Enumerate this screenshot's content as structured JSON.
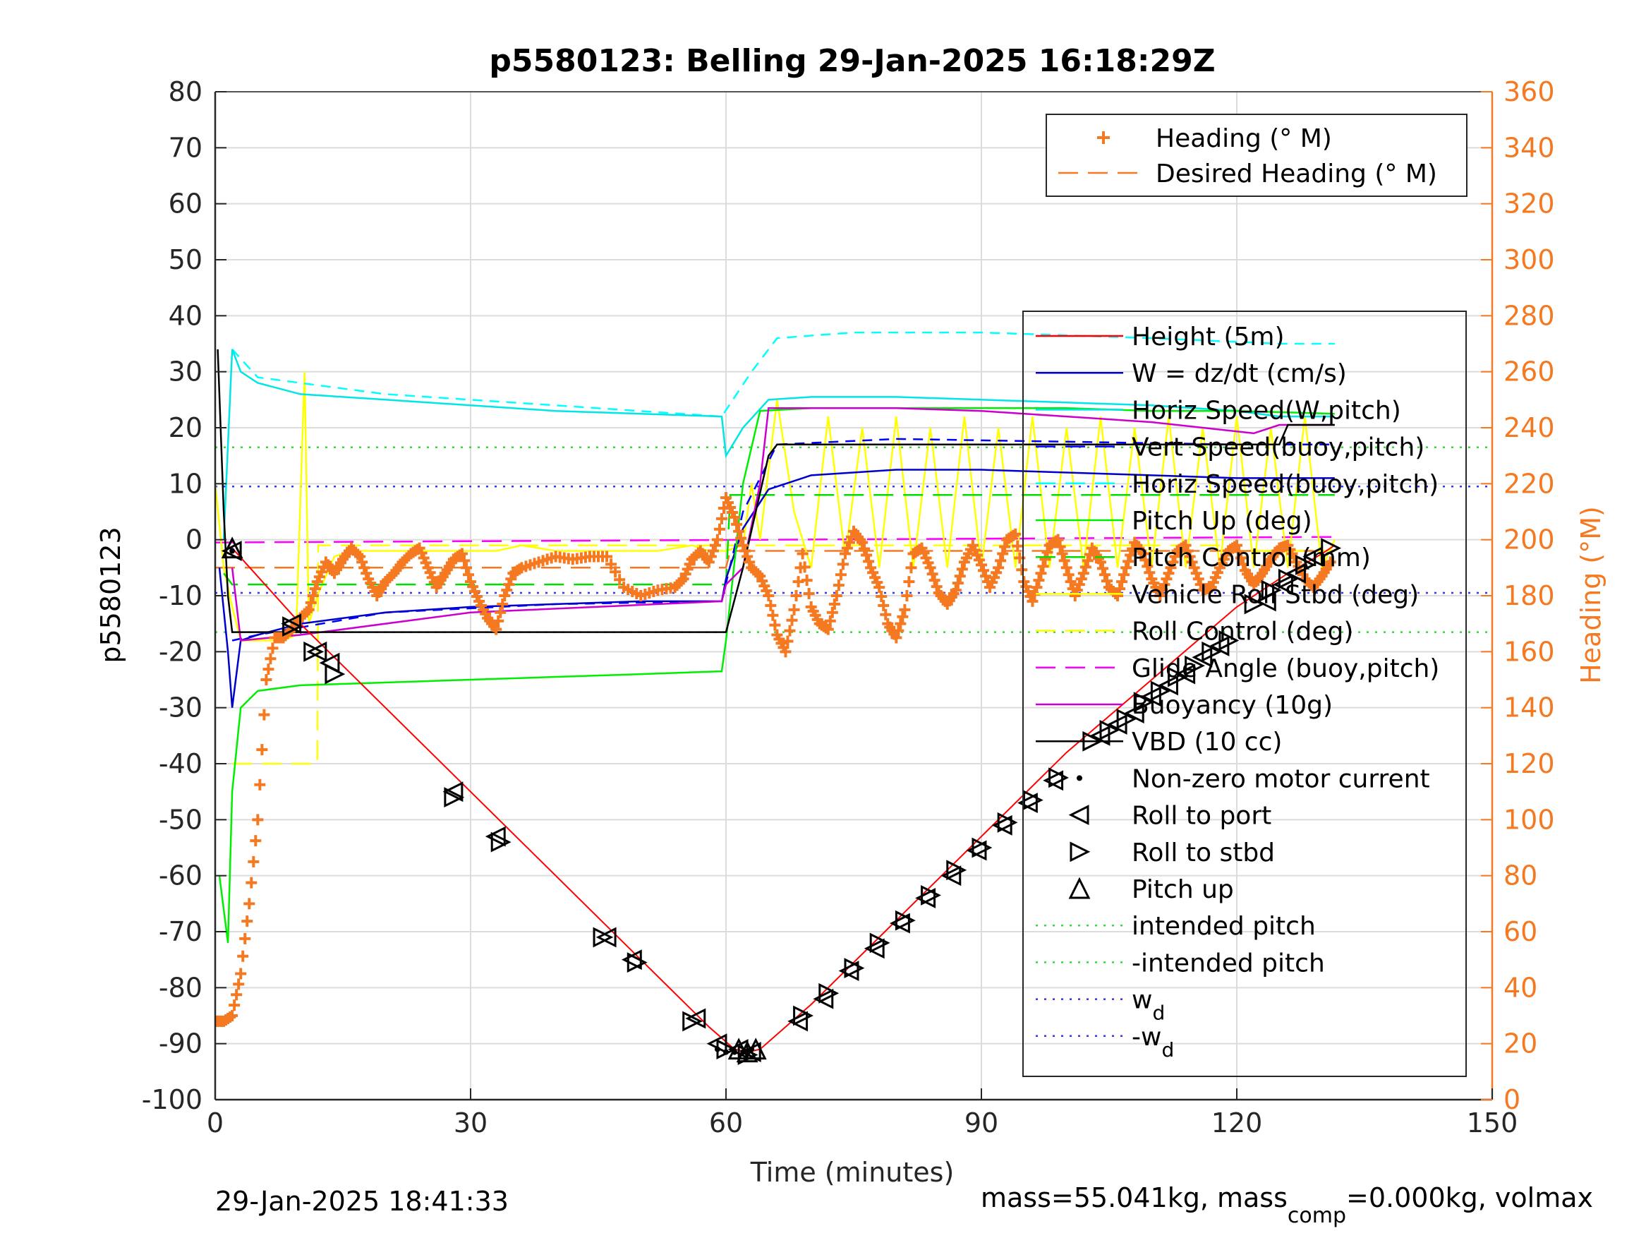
{
  "chart_data": {
    "type": "line",
    "title": "p5580123: Belling 29-Jan-2025 16:18:29Z",
    "xlabel": "Time (minutes)",
    "ylabel_left": "p5580123",
    "ylabel_right": "Heading (°M)",
    "xlim": [
      0,
      150
    ],
    "ylim_left": [
      -100,
      80
    ],
    "ylim_right": [
      0,
      360
    ],
    "xticks": [
      0,
      30,
      60,
      90,
      120,
      150
    ],
    "yticks_left": [
      80,
      70,
      60,
      50,
      40,
      30,
      20,
      10,
      0,
      -10,
      -20,
      -30,
      -40,
      -50,
      -60,
      -70,
      -80,
      -90,
      -100
    ],
    "yticks_right": [
      360,
      340,
      320,
      300,
      280,
      260,
      240,
      220,
      200,
      180,
      160,
      140,
      120,
      100,
      80,
      60,
      40,
      20,
      0
    ],
    "grid": true,
    "footer_left": "29-Jan-2025 18:41:33",
    "footer_right": {
      "mass": "mass=55.041kg, mass",
      "mass_sub": "comp",
      "mass_rest": "=0.000kg, volmax"
    },
    "colors": {
      "height": "#ff0000",
      "w": "#0000cc",
      "horiz_speed_w": "#00e5e5",
      "vert_speed_buoy": "#0000ff",
      "horiz_speed_buoy": "#00ffff",
      "pitch_up": "#00ee00",
      "pitch_control": "#00dd00",
      "roll": "#ffff00",
      "roll_control": "#ffff00",
      "glide_angle": "#ff00ff",
      "buoyancy": "#cc00cc",
      "vbd": "#000000",
      "heading": "#f47920",
      "intended_pitch": "#33dd33",
      "wd": "#3333ff"
    },
    "legend_heading": {
      "location": "top-right",
      "entries": [
        {
          "label": "Heading (° M)",
          "style": "plus"
        },
        {
          "label": "Desired Heading (° M)",
          "style": "dash"
        }
      ]
    },
    "legend_main": {
      "location": "right",
      "entries": [
        {
          "label": "Height (5m)",
          "style": "line",
          "color": "#ff0000"
        },
        {
          "label": "W = dz/dt (cm/s)",
          "style": "line",
          "color": "#0000cc"
        },
        {
          "label": "Horiz Speed(W,pitch)",
          "style": "line",
          "color": "#00e5e5"
        },
        {
          "label": "Vert Speed(buoy,pitch)",
          "style": "dash",
          "color": "#0000ff"
        },
        {
          "label": "Horiz Speed(buoy,pitch)",
          "style": "dash",
          "color": "#00ffff"
        },
        {
          "label": "Pitch Up (deg)",
          "style": "line",
          "color": "#00ee00"
        },
        {
          "label": "Pitch Control (mm)",
          "style": "dash",
          "color": "#00dd00"
        },
        {
          "label": "Vehicle Roll Stbd (deg)",
          "style": "line",
          "color": "#ffff00"
        },
        {
          "label": "Roll Control (deg)",
          "style": "dash",
          "color": "#ffff00"
        },
        {
          "label": "Glide Angle (buoy,pitch)",
          "style": "dash",
          "color": "#ff00ff"
        },
        {
          "label": "Buoyancy (10g)",
          "style": "line",
          "color": "#cc00cc"
        },
        {
          "label": "VBD (10 cc)",
          "style": "line",
          "color": "#000000"
        },
        {
          "label": "Non-zero motor current",
          "style": "dot",
          "color": "#000000"
        },
        {
          "label": "Roll to port",
          "style": "tri-left",
          "color": "#000000"
        },
        {
          "label": "Roll to stbd",
          "style": "tri-right",
          "color": "#000000"
        },
        {
          "label": "Pitch up",
          "style": "tri-up",
          "color": "#000000"
        },
        {
          "label": "intended pitch",
          "style": "dot-line",
          "color": "#33dd33"
        },
        {
          "label": "-intended pitch",
          "style": "dot-line",
          "color": "#33dd33"
        },
        {
          "label": "w",
          "sub": "d",
          "style": "dot-line",
          "color": "#3333ff"
        },
        {
          "label": "-w",
          "sub": "d",
          "style": "dot-line",
          "color": "#3333ff"
        }
      ]
    },
    "series": [
      {
        "name": "Height (5m)",
        "axis": "left",
        "x": [
          2,
          10,
          20,
          30,
          40,
          50,
          58,
          61,
          62.5,
          64,
          70,
          80,
          90,
          100,
          110,
          120,
          126,
          130,
          131.5
        ],
        "y": [
          -1.5,
          -15,
          -30,
          -45,
          -60,
          -75,
          -87,
          -91,
          -91.5,
          -91,
          -83,
          -68,
          -53,
          -38,
          -25,
          -12,
          -6,
          -2.5,
          -1
        ]
      },
      {
        "name": "W = dz/dt (cm/s)",
        "axis": "left",
        "x": [
          0.5,
          1.5,
          2,
          3,
          5,
          10,
          20,
          30,
          40,
          50,
          59.5,
          60,
          62,
          65,
          70,
          80,
          90,
          100,
          110,
          120,
          125,
          131.5
        ],
        "y": [
          -5,
          -20,
          -30,
          -18,
          -17,
          -15,
          -13,
          -12,
          -11.5,
          -11,
          -11,
          -7,
          2,
          9,
          11.5,
          12.5,
          12.5,
          12,
          11.5,
          11,
          11,
          11
        ]
      },
      {
        "name": "Horiz Speed(W,pitch)",
        "axis": "left",
        "x": [
          1,
          2,
          3,
          5,
          10,
          20,
          30,
          40,
          50,
          59.5,
          60,
          62,
          65,
          70,
          80,
          90,
          100,
          110,
          120,
          125,
          131.5
        ],
        "y": [
          0,
          34,
          30,
          28,
          26,
          25,
          24,
          23,
          22.5,
          22,
          15,
          20,
          25,
          25.5,
          25.5,
          25,
          24.5,
          24,
          23,
          22,
          22
        ]
      },
      {
        "name": "Vert Speed(buoy,pitch)",
        "axis": "left",
        "x": [
          2,
          5,
          20,
          40,
          59.5,
          62,
          66,
          80,
          100,
          120,
          131.5
        ],
        "y": [
          -18,
          -17,
          -13,
          -11.5,
          -11,
          5,
          17,
          18,
          17.5,
          17,
          17
        ]
      },
      {
        "name": "Horiz Speed(buoy,pitch)",
        "axis": "left",
        "x": [
          2,
          5,
          20,
          40,
          59.5,
          63,
          66,
          75,
          90,
          110,
          125,
          131.5
        ],
        "y": [
          34,
          29,
          26,
          24,
          22,
          30,
          36,
          37,
          37,
          36,
          35,
          35
        ]
      },
      {
        "name": "Pitch Up (deg)",
        "axis": "left",
        "x": [
          0.5,
          1.5,
          2,
          3,
          5,
          10,
          20,
          30,
          40,
          50,
          59.5,
          60,
          62,
          64,
          70,
          80,
          90,
          100,
          110,
          120,
          131.5
        ],
        "y": [
          -60,
          -72,
          -45,
          -30,
          -27,
          -26,
          -25.5,
          -25,
          -24.5,
          -24,
          -23.5,
          -18,
          10,
          23,
          23.5,
          23.5,
          23.5,
          23.5,
          23,
          23,
          22.5
        ]
      },
      {
        "name": "Pitch Control (mm)",
        "axis": "left",
        "x": [
          1,
          2,
          5,
          60,
          60.5,
          64,
          131.5
        ],
        "y": [
          -6,
          -8,
          -8,
          -8,
          8,
          8,
          8
        ]
      },
      {
        "name": "Vehicle Roll Stbd (deg)",
        "axis": "left",
        "x": [
          0,
          1,
          2,
          3,
          5,
          8,
          9.5,
          10.5,
          11,
          12,
          14,
          16,
          20,
          24,
          28,
          30,
          33,
          36,
          40,
          44,
          48,
          52,
          56,
          58,
          59.5,
          60,
          62,
          63,
          64,
          66,
          68,
          70,
          72,
          74,
          76,
          78,
          80,
          82,
          84,
          86,
          88,
          90,
          92,
          94,
          96,
          98,
          100,
          102,
          104,
          106,
          108,
          110,
          112,
          114,
          116,
          118,
          120,
          122,
          124,
          126,
          128,
          130,
          131.5
        ],
        "y": [
          10,
          -5,
          -12,
          -18,
          -18,
          -18,
          -17,
          30,
          -15,
          -10,
          -3,
          -2,
          -2,
          -2,
          -2,
          -2,
          -2,
          -1,
          -2,
          -2,
          -2,
          -2,
          -1,
          -2,
          -2,
          -2,
          -1,
          10,
          0,
          25,
          5,
          -5,
          22,
          -3,
          20,
          -5,
          22,
          -5,
          20,
          -5,
          22,
          -5,
          20,
          -5,
          22,
          -5,
          20,
          -5,
          22,
          -5,
          20,
          -5,
          22,
          -5,
          20,
          -5,
          22,
          -5,
          20,
          -5,
          22,
          -5,
          0
        ]
      },
      {
        "name": "Roll Control (deg)",
        "axis": "left",
        "x": [
          2,
          12,
          12.1,
          120,
          120.1,
          131.5
        ],
        "y": [
          -40,
          -40,
          -1,
          -1,
          -2,
          -2
        ]
      },
      {
        "name": "Glide Angle (buoy,pitch)",
        "axis": "left",
        "x": [
          0,
          131.5
        ],
        "y": [
          -0.5,
          0.5
        ]
      },
      {
        "name": "Buoyancy (10g)",
        "axis": "left",
        "x": [
          2,
          3,
          10,
          30,
          59.5,
          60,
          62,
          64,
          65,
          70,
          80,
          90,
          100,
          110,
          122,
          125,
          131.5
        ],
        "y": [
          -5,
          -18,
          -17,
          -13,
          -11,
          -8,
          -5,
          10,
          23.5,
          23.5,
          23.5,
          23,
          22,
          21,
          19,
          20.5,
          20.5
        ]
      },
      {
        "name": "VBD (10 cc)",
        "axis": "left",
        "x": [
          0.3,
          1,
          1.5,
          2,
          59.5,
          60,
          62,
          65,
          66,
          120,
          125,
          126,
          131.5
        ],
        "y": [
          34,
          5,
          -10,
          -16.5,
          -16.5,
          -16.5,
          -5,
          15,
          17,
          17,
          17,
          20.5,
          20.5
        ]
      },
      {
        "name": "intended pitch",
        "axis": "left",
        "x": [
          0,
          150
        ],
        "y": [
          16.5,
          16.5
        ]
      },
      {
        "name": "-intended pitch",
        "axis": "left",
        "x": [
          0,
          150
        ],
        "y": [
          -16.5,
          -16.5
        ]
      },
      {
        "name": "w_d",
        "axis": "left",
        "x": [
          0,
          150
        ],
        "y": [
          9.5,
          9.5
        ]
      },
      {
        "name": "-w_d",
        "axis": "left",
        "x": [
          0,
          150
        ],
        "y": [
          -9.5,
          -9.5
        ]
      },
      {
        "name": "Desired Heading (° M)",
        "axis": "right",
        "x": [
          0,
          60,
          60.5,
          131.5
        ],
        "y": [
          190,
          190,
          196,
          196
        ]
      },
      {
        "name": "Heading (° M)",
        "axis": "right",
        "style": "plus",
        "x": [
          0,
          1,
          2,
          3,
          4,
          5,
          6,
          7,
          8,
          9,
          10,
          11,
          12,
          13,
          14,
          15,
          16,
          17,
          18,
          19,
          20,
          21,
          22,
          23,
          24,
          25,
          26,
          27,
          28,
          29,
          30,
          31,
          32,
          33,
          34,
          35,
          36,
          38,
          40,
          42,
          44,
          46,
          48,
          50,
          52,
          54,
          55,
          56,
          57,
          58,
          59,
          60,
          61,
          62,
          63,
          64,
          65,
          66,
          67,
          68,
          69,
          70,
          71,
          72,
          73,
          74,
          75,
          76,
          77,
          78,
          79,
          80,
          81,
          82,
          83,
          84,
          85,
          86,
          87,
          88,
          89,
          90,
          91,
          92,
          93,
          94,
          95,
          96,
          97,
          98,
          99,
          100,
          101,
          102,
          103,
          104,
          105,
          106,
          107,
          108,
          109,
          110,
          111,
          112,
          113,
          114,
          115,
          116,
          117,
          118,
          119,
          120,
          121,
          122,
          123,
          124,
          125,
          126,
          127,
          128,
          129,
          130,
          131
        ],
        "y": [
          28,
          28,
          30,
          45,
          70,
          100,
          150,
          165,
          165,
          168,
          172,
          175,
          185,
          192,
          188,
          193,
          197,
          194,
          186,
          180,
          185,
          188,
          192,
          195,
          197,
          190,
          183,
          188,
          193,
          195,
          185,
          178,
          172,
          168,
          180,
          188,
          190,
          192,
          194,
          193,
          194,
          194,
          183,
          180,
          182,
          183,
          186,
          193,
          196,
          192,
          200,
          215,
          208,
          198,
          190,
          187,
          180,
          166,
          160,
          175,
          195,
          176,
          170,
          168,
          180,
          195,
          203,
          199,
          190,
          183,
          170,
          165,
          175,
          195,
          197,
          190,
          181,
          177,
          182,
          192,
          198,
          191,
          183,
          190,
          200,
          202,
          185,
          178,
          188,
          198,
          200,
          190,
          180,
          188,
          197,
          192,
          183,
          180,
          190,
          199,
          195,
          186,
          180,
          188,
          196,
          198,
          190,
          182,
          183,
          190,
          196,
          198,
          189,
          184,
          188,
          193,
          197,
          198,
          192,
          186,
          183,
          187,
          192
        ]
      }
    ],
    "markers": {
      "roll_to_port": {
        "x": [
          2,
          9,
          12,
          13.5,
          28,
          33,
          46,
          49,
          56.5,
          59,
          61.5,
          63,
          68.5,
          71.5,
          74.5,
          77.5,
          80.5,
          83.5,
          86.5,
          89.5,
          92.5,
          95.5,
          98.5,
          104,
          106,
          108,
          110,
          112,
          114,
          116,
          118,
          123.5,
          125.5,
          127,
          129
        ],
        "y": [
          -2,
          -15,
          -20,
          -22,
          -45,
          -53,
          -71,
          -75,
          -85.5,
          -90,
          -91,
          -91.5,
          -86,
          -82,
          -77,
          -73,
          -68.5,
          -64,
          -60,
          -55.5,
          -51,
          -47,
          -43,
          -35,
          -33,
          -31,
          -28,
          -26,
          -24,
          -21,
          -19,
          -11,
          -8,
          -6,
          -3
        ]
      },
      "roll_to_stbd": {
        "x": [
          9,
          11.5,
          14,
          28,
          33.5,
          45.5,
          49.5,
          56,
          60,
          62.5,
          69,
          72,
          75,
          78,
          81,
          84,
          87,
          90,
          93,
          96,
          99,
          103,
          105,
          107,
          109,
          111,
          113,
          115,
          117,
          119,
          122,
          124,
          126,
          128,
          131
        ],
        "y": [
          -15.5,
          -20,
          -24,
          -46,
          -54,
          -71,
          -75.5,
          -86,
          -91,
          -92,
          -85,
          -81,
          -76.5,
          -72,
          -68,
          -63.5,
          -59,
          -55,
          -50.5,
          -46.5,
          -42.5,
          -36,
          -34,
          -32,
          -29,
          -27,
          -24.5,
          -22.5,
          -20,
          -18,
          -11.5,
          -9,
          -7,
          -4.5,
          -1.5
        ]
      },
      "pitch_up": {
        "x": [
          2,
          61.5,
          62.5,
          63.5
        ],
        "y": [
          -1.5,
          -91,
          -91.5,
          -91
        ]
      },
      "motor_current": {
        "x": [
          2,
          59,
          60,
          61,
          62,
          63
        ],
        "y": [
          -2,
          -91,
          -91.5,
          -91.5,
          -91.5,
          -91
        ]
      }
    }
  }
}
